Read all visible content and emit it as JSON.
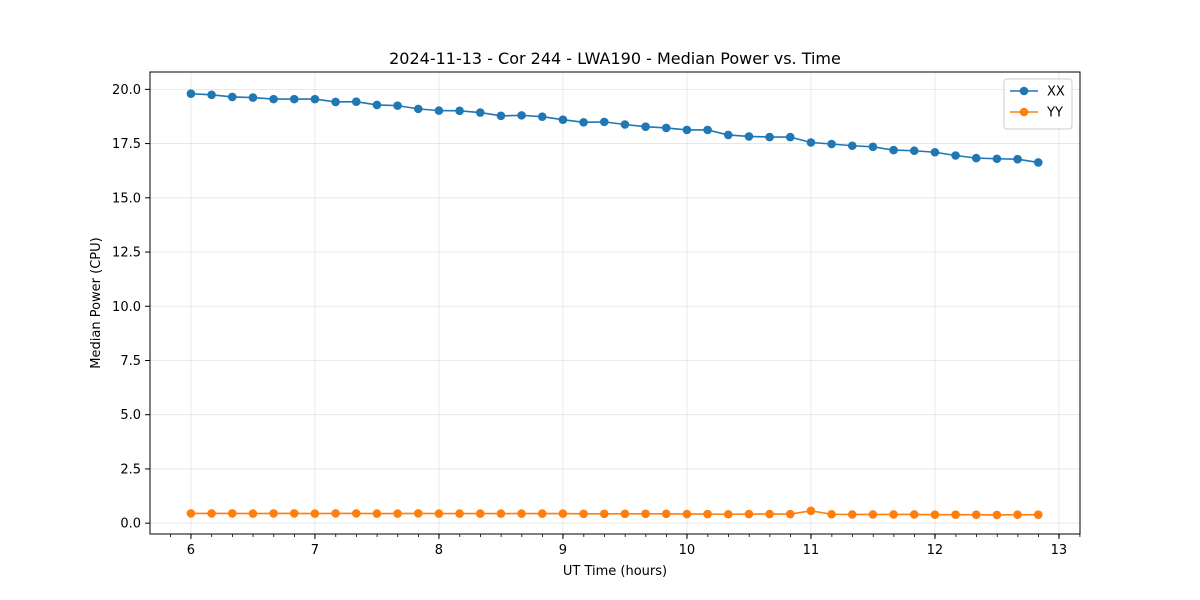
{
  "chart_data": {
    "type": "line",
    "title": "2024-11-13 - Cor 244 - LWA190 - Median Power vs. Time",
    "xlabel": "UT Time (hours)",
    "ylabel": "Median Power (CPU)",
    "xlim": [
      5.67,
      13.17
    ],
    "ylim": [
      -0.5,
      20.8
    ],
    "grid": true,
    "legend_position": "top-right",
    "xticks": [
      6,
      7,
      8,
      9,
      10,
      11,
      12,
      13
    ],
    "xtick_labels": [
      "6",
      "7",
      "8",
      "9",
      "10",
      "11",
      "12",
      "13"
    ],
    "xminor_step": 0.1667,
    "yticks": [
      0.0,
      2.5,
      5.0,
      7.5,
      10.0,
      12.5,
      15.0,
      17.5,
      20.0
    ],
    "ytick_labels": [
      "0.0",
      "2.5",
      "5.0",
      "7.5",
      "10.0",
      "12.5",
      "15.0",
      "17.5",
      "20.0"
    ],
    "x": [
      6.0,
      6.1667,
      6.3333,
      6.5,
      6.6667,
      6.8333,
      7.0,
      7.1667,
      7.3333,
      7.5,
      7.6667,
      7.8333,
      8.0,
      8.1667,
      8.3333,
      8.5,
      8.6667,
      8.8333,
      9.0,
      9.1667,
      9.3333,
      9.5,
      9.6667,
      9.8333,
      10.0,
      10.1667,
      10.3333,
      10.5,
      10.6667,
      10.8333,
      11.0,
      11.1667,
      11.3333,
      11.5,
      11.6667,
      11.8333,
      12.0,
      12.1667,
      12.3333,
      12.5,
      12.6667,
      12.8333
    ],
    "series": [
      {
        "name": "XX",
        "color": "#1f77b4",
        "values": [
          19.8,
          19.75,
          19.65,
          19.62,
          19.55,
          19.55,
          19.55,
          19.42,
          19.43,
          19.28,
          19.25,
          19.1,
          19.02,
          19.01,
          18.93,
          18.78,
          18.8,
          18.74,
          18.6,
          18.48,
          18.5,
          18.38,
          18.28,
          18.22,
          18.13,
          18.13,
          17.9,
          17.83,
          17.8,
          17.8,
          17.55,
          17.48,
          17.4,
          17.35,
          17.2,
          17.17,
          17.1,
          16.95,
          16.83,
          16.8,
          16.78,
          16.63
        ]
      },
      {
        "name": "YY",
        "color": "#ff7f0e",
        "values": [
          0.45,
          0.45,
          0.45,
          0.44,
          0.45,
          0.45,
          0.44,
          0.45,
          0.45,
          0.44,
          0.44,
          0.45,
          0.44,
          0.44,
          0.44,
          0.44,
          0.44,
          0.44,
          0.44,
          0.43,
          0.43,
          0.43,
          0.43,
          0.43,
          0.42,
          0.42,
          0.41,
          0.42,
          0.42,
          0.42,
          0.57,
          0.41,
          0.4,
          0.4,
          0.4,
          0.4,
          0.39,
          0.39,
          0.39,
          0.38,
          0.39,
          0.39
        ]
      }
    ]
  }
}
